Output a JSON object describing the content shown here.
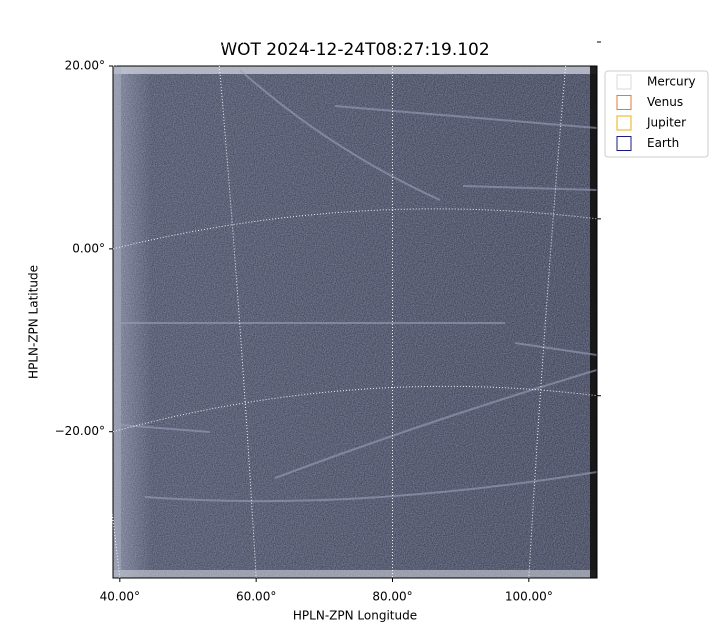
{
  "chart_data": {
    "type": "image",
    "title": "WOT 2024-12-24T08:27:19.102",
    "x_label": "HPLN-ZPN Longitude",
    "y_label": "HPLN-ZPN Latitude",
    "xlim": [
      39,
      110
    ],
    "ylim": [
      -36,
      20
    ],
    "xticks": [
      {
        "value": 40,
        "label": "40.00°"
      },
      {
        "value": 60,
        "label": "60.00°"
      },
      {
        "value": 80,
        "label": "80.00°"
      },
      {
        "value": 100,
        "label": "100.00°"
      }
    ],
    "yticks": [
      {
        "value": 20,
        "label": "20.00°"
      },
      {
        "value": 0,
        "label": "0.00°"
      },
      {
        "value": -20,
        "label": "−20.00°"
      }
    ],
    "grid": true,
    "legend": "upper right",
    "series": [
      {
        "name": "Mercury",
        "color": "#d9d9d9"
      },
      {
        "name": "Venus",
        "color": "#e07b39"
      },
      {
        "name": "Jupiter",
        "color": "#e8b20e"
      },
      {
        "name": "Earth",
        "color": "#1a1a80"
      }
    ]
  }
}
